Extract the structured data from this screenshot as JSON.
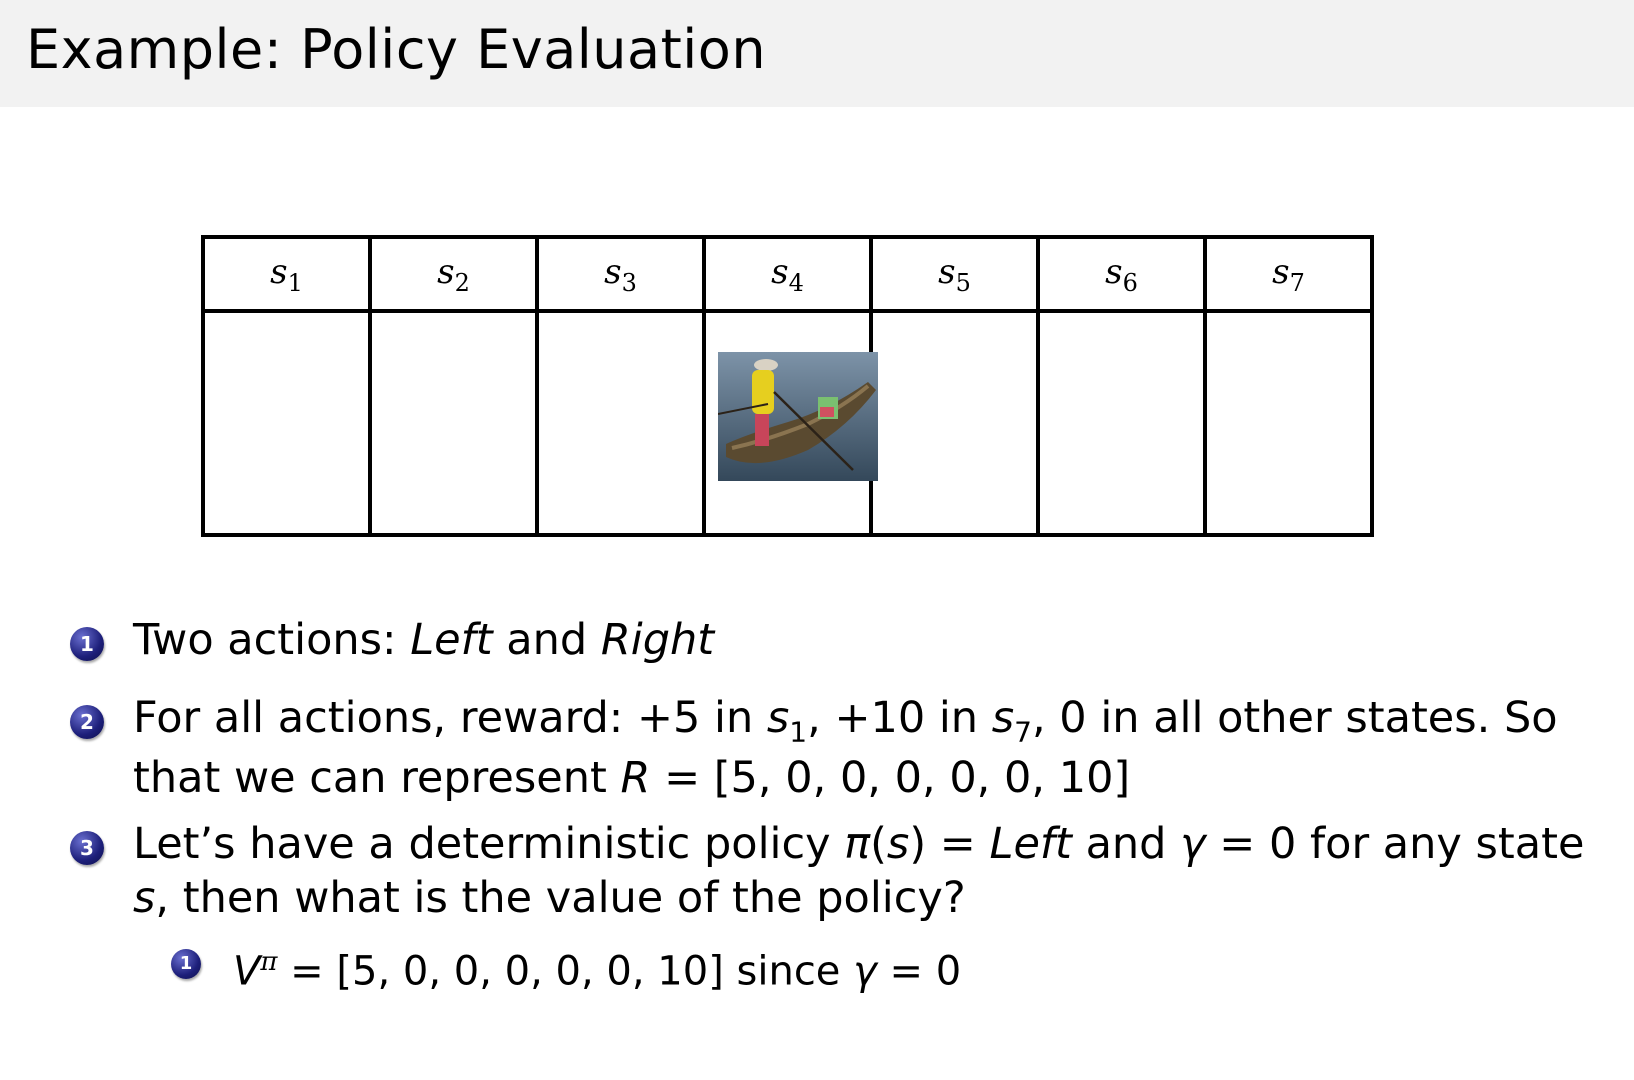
{
  "slide": {
    "title": "Example: Policy Evaluation"
  },
  "grid": {
    "states": [
      {
        "name": "s",
        "sub": "1"
      },
      {
        "name": "s",
        "sub": "2"
      },
      {
        "name": "s",
        "sub": "3"
      },
      {
        "name": "s",
        "sub": "4"
      },
      {
        "name": "s",
        "sub": "5"
      },
      {
        "name": "s",
        "sub": "6"
      },
      {
        "name": "s",
        "sub": "7"
      }
    ],
    "agent_state_index": 3,
    "agent_image": "boat-with-person-photo"
  },
  "bullets": [
    {
      "number": "1",
      "lines": [
        [
          {
            "t": "Two actions:  "
          },
          {
            "t": "Left",
            "i": true
          },
          {
            "t": " and "
          },
          {
            "t": "Right",
            "i": true
          }
        ]
      ]
    },
    {
      "number": "2",
      "lines": [
        [
          {
            "t": "For all actions, reward: +5 in "
          },
          {
            "t": "s",
            "i": true
          },
          {
            "t": "1",
            "sub": true
          },
          {
            "t": ", +10 in "
          },
          {
            "t": "s",
            "i": true
          },
          {
            "t": "7",
            "sub": true
          },
          {
            "t": ", 0 in all other states. So"
          }
        ],
        [
          {
            "t": "that we can represent "
          },
          {
            "t": "R",
            "i": true
          },
          {
            "t": " = [5, 0, 0, 0, 0, 0, 10]"
          }
        ]
      ]
    },
    {
      "number": "3",
      "lines": [
        [
          {
            "t": "Let’s have a deterministic policy "
          },
          {
            "t": "π",
            "i": true
          },
          {
            "t": "("
          },
          {
            "t": "s",
            "i": true
          },
          {
            "t": ") = "
          },
          {
            "t": "Left",
            "i": true
          },
          {
            "t": " and "
          },
          {
            "t": "γ",
            "i": true
          },
          {
            "t": " = 0 for any state"
          }
        ],
        [
          {
            "t": "s",
            "i": true
          },
          {
            "t": ", then what is the value of the policy?"
          }
        ]
      ]
    }
  ],
  "subbullets": [
    {
      "number": "1",
      "lines": [
        [
          {
            "t": "V",
            "i": true
          },
          {
            "t": "π",
            "sup": true
          },
          {
            "t": " = [5, 0, 0, 0, 0, 0, 10] since "
          },
          {
            "t": "γ",
            "i": true
          },
          {
            "t": " = 0"
          }
        ]
      ]
    }
  ],
  "colors": {
    "title_bar": "#f2f2f2",
    "bullet_ball": "#1d1f7a"
  }
}
